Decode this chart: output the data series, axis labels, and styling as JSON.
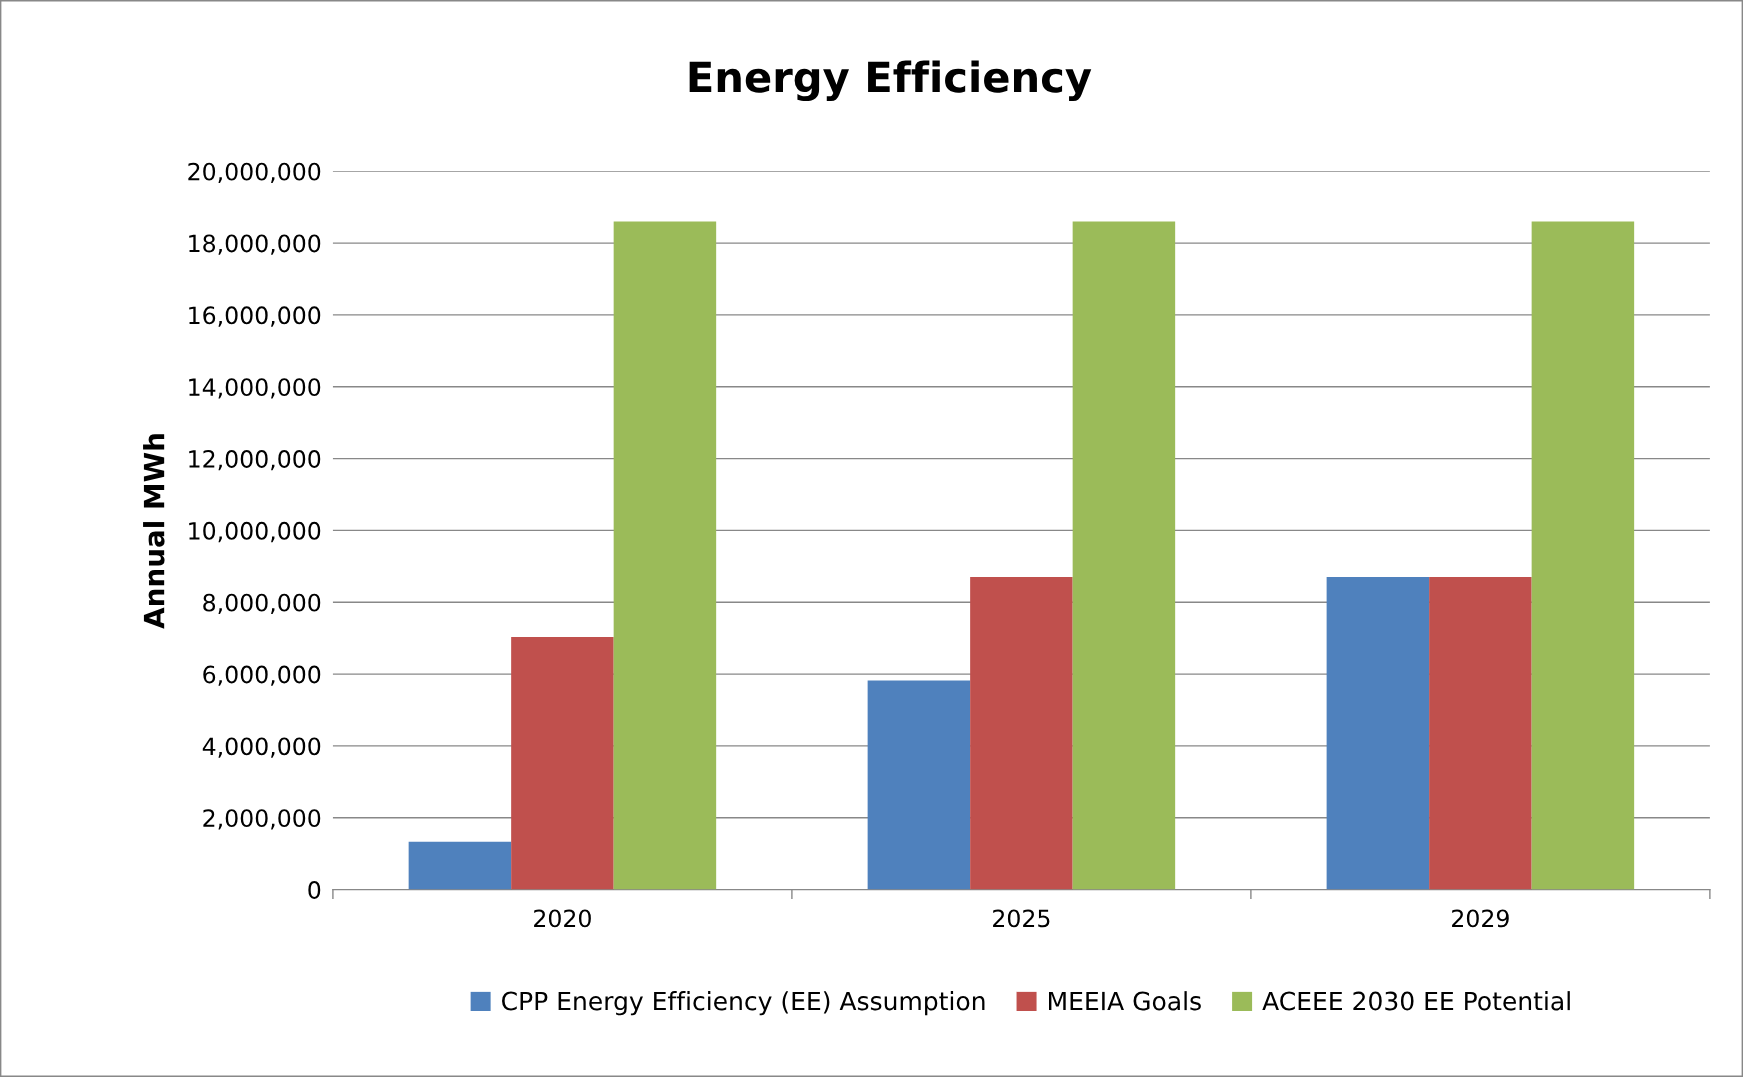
{
  "chart_data": {
    "type": "bar",
    "title": "Energy Efficiency",
    "ylabel": "Annual MWh",
    "categories": [
      "2020",
      "2025",
      "2029"
    ],
    "series": [
      {
        "name": "CPP Energy Efficiency (EE) Assumption",
        "color": "#4f81bd",
        "values": [
          1330000,
          5820000,
          8700000
        ]
      },
      {
        "name": "MEEIA Goals",
        "color": "#c0504d",
        "values": [
          7030000,
          8700000,
          8700000
        ]
      },
      {
        "name": "ACEEE 2030 EE Potential",
        "color": "#9bbb59",
        "values": [
          18600000,
          18600000,
          18600000
        ]
      }
    ],
    "ylim": [
      0,
      20000000
    ],
    "yticks": [
      0,
      {
        "value": 2000000,
        "label": "2,000,000"
      },
      {
        "value": 4000000,
        "label": "4,000,000"
      },
      {
        "value": 6000000,
        "label": "6,000,000"
      },
      {
        "value": 8000000,
        "label": "8,000,000"
      },
      {
        "value": 10000000,
        "label": "10,000,000"
      },
      {
        "value": 12000000,
        "label": "12,000,000"
      },
      {
        "value": 14000000,
        "label": "14,000,000"
      },
      {
        "value": 16000000,
        "label": "16,000,000"
      },
      {
        "value": 18000000,
        "label": "18,000,000"
      },
      {
        "value": 20000000,
        "label": "20,000,000"
      }
    ],
    "grid": "y",
    "legend": "bottom"
  }
}
